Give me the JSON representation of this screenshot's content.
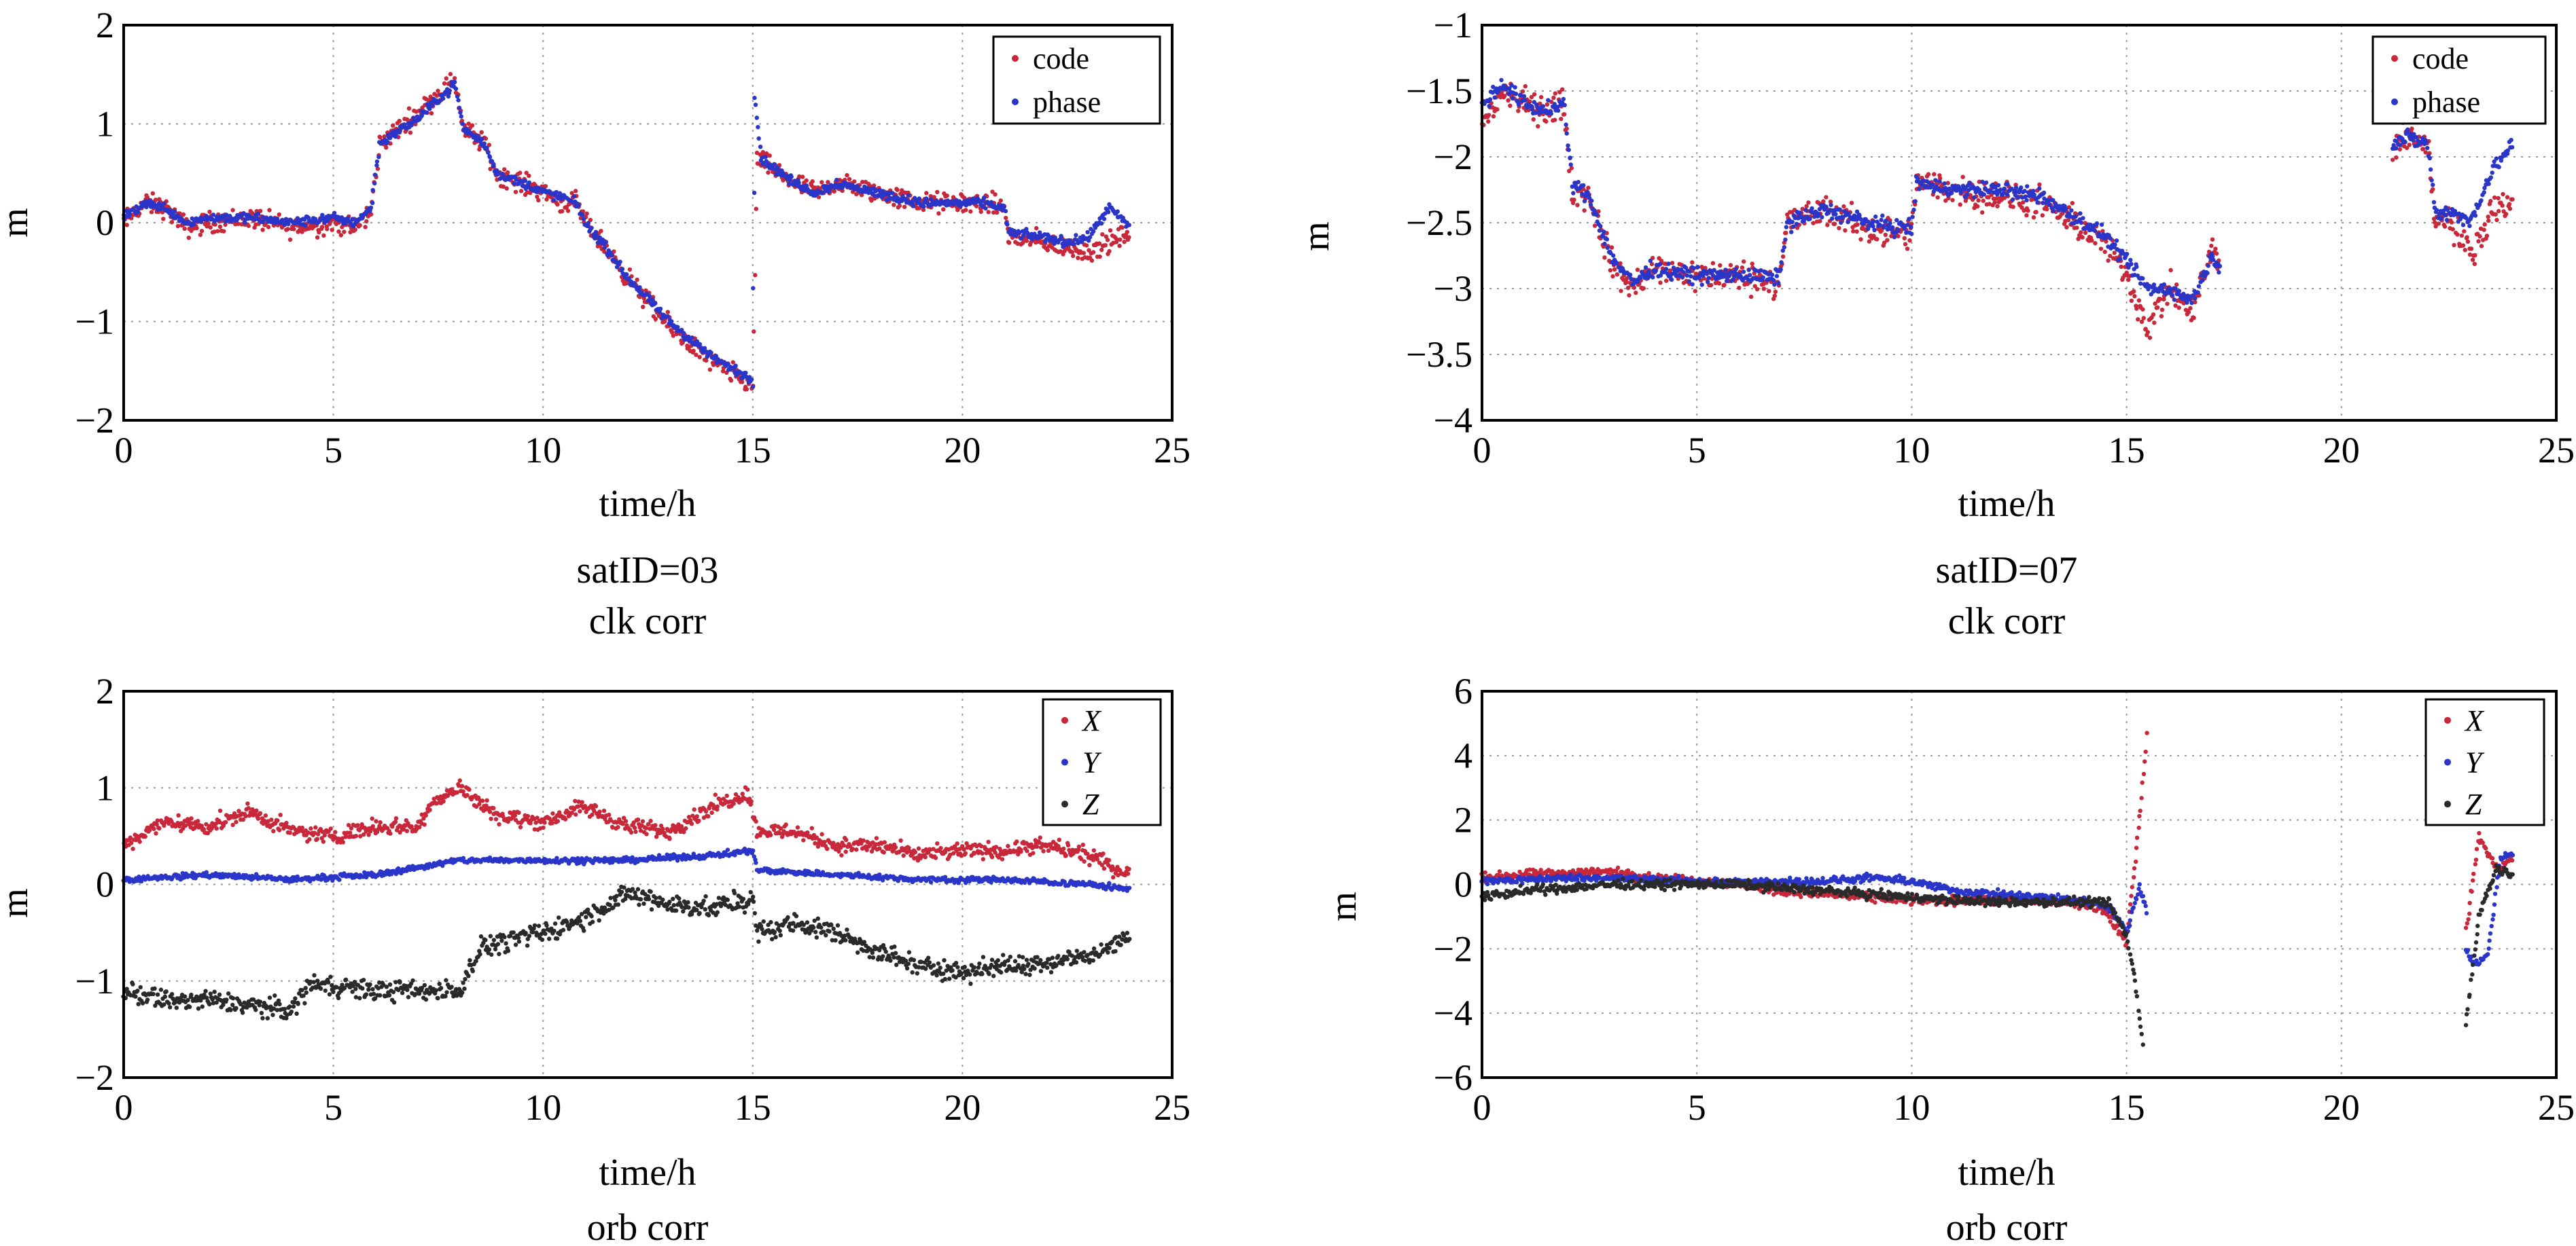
{
  "colors": {
    "code": "#c8283a",
    "phase": "#2a35c9",
    "X": "#c8283a",
    "Y": "#2a35c9",
    "Z": "#2a2a2a",
    "grid": "#9a9a9a",
    "axis": "#000000"
  },
  "panels": {
    "clk03": {
      "satid": "satID=03",
      "subtitle": "clk corr",
      "chart_data": {
        "type": "scatter",
        "xlabel": "time/h",
        "ylabel": "m",
        "xlim": [
          0,
          25
        ],
        "ylim": [
          -2,
          2
        ],
        "xticks": [
          0,
          5,
          10,
          15,
          20,
          25
        ],
        "yticks": [
          -2,
          -1,
          0,
          1,
          2
        ],
        "xtick_labels": [
          "0",
          "5",
          "10",
          "15",
          "20",
          "25"
        ],
        "ytick_labels": [
          "−2",
          "−1",
          "0",
          "1",
          "2"
        ],
        "legend": "top-right",
        "grid": true,
        "series": [
          {
            "name": "code",
            "key": "code",
            "noise": 0.09,
            "x": [
              0,
              0.5,
              1,
              1.5,
              2,
              3,
              4,
              5,
              5.5,
              5.9,
              6.1,
              7,
              7.5,
              7.9,
              8.1,
              8.6,
              8.9,
              9.5,
              10.1,
              10.5,
              10.8,
              11,
              11.5,
              12,
              13,
              14,
              15,
              15.1,
              16,
              16.5,
              17,
              18,
              19,
              20,
              20.5,
              21,
              21.1,
              22,
              22.5,
              23,
              23.5,
              24
            ],
            "y": [
              0,
              0.2,
              0.15,
              -0.05,
              0,
              0.05,
              -0.05,
              0,
              -0.05,
              0.1,
              0.8,
              1.1,
              1.3,
              1.45,
              0.95,
              0.8,
              0.5,
              0.4,
              0.3,
              0.2,
              0.2,
              0,
              -0.25,
              -0.55,
              -1.05,
              -1.4,
              -1.65,
              0.65,
              0.4,
              0.3,
              0.4,
              0.3,
              0.2,
              0.2,
              0.2,
              0.15,
              -0.15,
              -0.2,
              -0.25,
              -0.3,
              -0.2,
              -0.1
            ]
          },
          {
            "name": "phase",
            "key": "phase",
            "noise": 0.04,
            "x": [
              0,
              0.5,
              1,
              1.5,
              2,
              3,
              4,
              5,
              5.5,
              5.9,
              6.1,
              7,
              7.5,
              7.9,
              8.1,
              8.6,
              8.9,
              9.5,
              10.1,
              10.5,
              10.8,
              11,
              11.5,
              12,
              13,
              14,
              15,
              15.05,
              15.2,
              16,
              16.5,
              17,
              18,
              19,
              20,
              20.5,
              21,
              21.1,
              22,
              22.5,
              23,
              23.5,
              24
            ],
            "y": [
              0.05,
              0.2,
              0.15,
              0,
              0.05,
              0.05,
              0,
              0.05,
              0,
              0.15,
              0.8,
              1.05,
              1.25,
              1.4,
              0.95,
              0.8,
              0.5,
              0.4,
              0.3,
              0.25,
              0.2,
              0,
              -0.25,
              -0.55,
              -1.0,
              -1.35,
              -1.6,
              1.3,
              0.65,
              0.4,
              0.3,
              0.4,
              0.3,
              0.2,
              0.2,
              0.2,
              0.15,
              -0.1,
              -0.15,
              -0.2,
              -0.15,
              0.15,
              -0.05
            ]
          }
        ]
      }
    },
    "clk07": {
      "satid": "satID=07",
      "subtitle": "clk corr",
      "chart_data": {
        "type": "scatter",
        "xlabel": "time/h",
        "ylabel": "m",
        "xlim": [
          0,
          25
        ],
        "ylim": [
          -4,
          -1
        ],
        "xticks": [
          0,
          5,
          10,
          15,
          20,
          25
        ],
        "yticks": [
          -4,
          -3.5,
          -3,
          -2.5,
          -2,
          -1.5,
          -1
        ],
        "xtick_labels": [
          "0",
          "5",
          "10",
          "15",
          "20",
          "25"
        ],
        "ytick_labels": [
          "−4",
          "−3.5",
          "−3",
          "−2.5",
          "−2",
          "−1.5",
          "−1"
        ],
        "legend": "top-right",
        "grid": true,
        "series": [
          {
            "name": "code",
            "key": "code",
            "noise": 0.1,
            "x": [
              0,
              0.5,
              1,
              1.5,
              1.9,
              2.1,
              2.5,
              3,
              3.5,
              4,
              5,
              6,
              6.9,
              7.1,
              8,
              9,
              10,
              10.1,
              11,
              12,
              13,
              14,
              14.5,
              15,
              15.5,
              16,
              16.5,
              17,
              17.2,
              21.2,
              21.5,
              22,
              22.2,
              22.5,
              23,
              23.5,
              24
            ],
            "y": [
              -1.75,
              -1.5,
              -1.6,
              -1.65,
              -1.6,
              -2.25,
              -2.3,
              -2.8,
              -3.0,
              -2.85,
              -2.9,
              -2.9,
              -2.95,
              -2.5,
              -2.4,
              -2.55,
              -2.6,
              -2.2,
              -2.25,
              -2.3,
              -2.35,
              -2.55,
              -2.65,
              -2.9,
              -3.3,
              -3.0,
              -3.2,
              -2.7,
              -2.9,
              -1.95,
              -1.85,
              -1.9,
              -2.5,
              -2.45,
              -2.75,
              -2.4,
              -2.35
            ]
          },
          {
            "name": "phase",
            "key": "phase",
            "noise": 0.05,
            "x": [
              0,
              0.5,
              1,
              1.5,
              1.9,
              2.1,
              2.5,
              3,
              3.5,
              4,
              5,
              6,
              6.9,
              7.1,
              8,
              9,
              10,
              10.1,
              11,
              12,
              13,
              14,
              14.5,
              15,
              15.5,
              16,
              16.5,
              17,
              17.2,
              21.2,
              21.5,
              22,
              22.2,
              22.5,
              23,
              23.5,
              24
            ],
            "y": [
              -1.6,
              -1.45,
              -1.6,
              -1.65,
              -1.6,
              -2.2,
              -2.3,
              -2.75,
              -2.95,
              -2.85,
              -2.9,
              -2.9,
              -2.92,
              -2.5,
              -2.4,
              -2.5,
              -2.55,
              -2.2,
              -2.25,
              -2.25,
              -2.3,
              -2.5,
              -2.6,
              -2.8,
              -3.0,
              -3.0,
              -3.1,
              -2.75,
              -2.85,
              -1.9,
              -1.85,
              -1.9,
              -2.45,
              -2.4,
              -2.5,
              -2.1,
              -1.9
            ]
          }
        ]
      }
    },
    "orb03": {
      "subtitle": "orb corr",
      "chart_data": {
        "type": "scatter",
        "xlabel": "time/h",
        "ylabel": "m",
        "xlim": [
          0,
          25
        ],
        "ylim": [
          -2,
          2
        ],
        "xticks": [
          0,
          5,
          10,
          15,
          20,
          25
        ],
        "yticks": [
          -2,
          -1,
          0,
          1,
          2
        ],
        "xtick_labels": [
          "0",
          "5",
          "10",
          "15",
          "20",
          "25"
        ],
        "ytick_labels": [
          "−2",
          "−1",
          "0",
          "1",
          "2"
        ],
        "legend": "top-right",
        "grid": true,
        "series": [
          {
            "name": "X",
            "key": "X",
            "noise": 0.07,
            "x": [
              0,
              1,
              2,
              3,
              4,
              5,
              6,
              7,
              7.5,
              8,
              9,
              10,
              11,
              12,
              13,
              14,
              14.9,
              15.1,
              16,
              17,
              18,
              19,
              20,
              21,
              22,
              23,
              24
            ],
            "y": [
              0.4,
              0.65,
              0.6,
              0.75,
              0.55,
              0.5,
              0.6,
              0.6,
              0.9,
              1.0,
              0.7,
              0.65,
              0.8,
              0.6,
              0.55,
              0.8,
              0.95,
              0.55,
              0.55,
              0.4,
              0.4,
              0.3,
              0.35,
              0.35,
              0.4,
              0.3,
              0.1
            ]
          },
          {
            "name": "Y",
            "key": "Y",
            "noise": 0.025,
            "x": [
              0,
              2,
              4,
              6,
              8,
              10,
              12,
              14,
              15,
              15.1,
              17,
              19,
              21,
              23,
              24
            ],
            "y": [
              0.05,
              0.1,
              0.05,
              0.1,
              0.25,
              0.25,
              0.25,
              0.3,
              0.35,
              0.15,
              0.1,
              0.05,
              0.05,
              0.0,
              -0.05
            ]
          },
          {
            "name": "Z",
            "key": "Z",
            "noise": 0.09,
            "x": [
              0,
              1,
              2,
              3,
              4,
              4.5,
              5,
              6,
              7,
              8,
              8.5,
              9,
              10,
              11,
              12,
              13,
              14,
              15,
              15.1,
              16,
              17,
              18,
              19,
              20,
              21,
              22,
              23,
              24
            ],
            "y": [
              -1.1,
              -1.2,
              -1.2,
              -1.25,
              -1.3,
              -1.0,
              -1.05,
              -1.1,
              -1.1,
              -1.1,
              -0.65,
              -0.6,
              -0.5,
              -0.35,
              -0.1,
              -0.2,
              -0.25,
              -0.15,
              -0.5,
              -0.4,
              -0.5,
              -0.7,
              -0.85,
              -0.9,
              -0.85,
              -0.8,
              -0.75,
              -0.55
            ]
          }
        ]
      }
    },
    "orb07": {
      "subtitle": "orb corr",
      "chart_data": {
        "type": "scatter",
        "xlabel": "time/h",
        "ylabel": "m",
        "xlim": [
          0,
          25
        ],
        "ylim": [
          -6,
          6
        ],
        "xticks": [
          0,
          5,
          10,
          15,
          20,
          25
        ],
        "yticks": [
          -6,
          -4,
          -2,
          0,
          2,
          4,
          6
        ],
        "xtick_labels": [
          "0",
          "5",
          "10",
          "15",
          "20",
          "25"
        ],
        "ytick_labels": [
          "−6",
          "−4",
          "−2",
          "0",
          "2",
          "4",
          "6"
        ],
        "legend": "top-right",
        "grid": true,
        "series": [
          {
            "name": "X",
            "key": "X",
            "noise": 0.12,
            "x": [
              0,
              1,
              2,
              3,
              4,
              5,
              6,
              7,
              8,
              9,
              10,
              11,
              12,
              13,
              14,
              14.5,
              15,
              15.3,
              15.5,
              22.9,
              23.2,
              23.6,
              24
            ],
            "y": [
              0.2,
              0.3,
              0.35,
              0.4,
              0.2,
              0.1,
              0.0,
              -0.2,
              -0.3,
              -0.4,
              -0.5,
              -0.5,
              -0.5,
              -0.5,
              -0.6,
              -0.8,
              -1.8,
              2.0,
              5.0,
              -1.5,
              1.5,
              0.5,
              0.8
            ]
          },
          {
            "name": "Y",
            "key": "Y",
            "noise": 0.1,
            "x": [
              0,
              1,
              2,
              3,
              4,
              5,
              6,
              7,
              8,
              9,
              10,
              11,
              12,
              13,
              14,
              14.6,
              15,
              15.3,
              15.5,
              22.9,
              23.1,
              23.4,
              23.7,
              24
            ],
            "y": [
              0.1,
              0.15,
              0.2,
              0.2,
              0.15,
              0.1,
              0.05,
              0.1,
              0.1,
              0.2,
              0.1,
              -0.2,
              -0.3,
              -0.4,
              -0.5,
              -0.7,
              -1.5,
              0.0,
              -1.0,
              -2.0,
              -2.5,
              -2.2,
              0.8,
              1.0
            ]
          },
          {
            "name": "Z",
            "key": "Z",
            "noise": 0.12,
            "x": [
              0,
              1,
              2,
              3,
              4,
              5,
              6,
              7,
              8,
              9,
              10,
              11,
              12,
              13,
              14,
              14.6,
              15,
              15.2,
              15.4,
              22.9,
              23.2,
              23.6,
              24
            ],
            "y": [
              -0.4,
              -0.2,
              -0.1,
              0.0,
              0.0,
              0.0,
              0.0,
              -0.1,
              -0.2,
              -0.3,
              -0.4,
              -0.5,
              -0.55,
              -0.55,
              -0.55,
              -0.6,
              -1.6,
              -3.0,
              -5.2,
              -4.3,
              -1.0,
              0.5,
              0.3
            ]
          }
        ]
      }
    }
  }
}
